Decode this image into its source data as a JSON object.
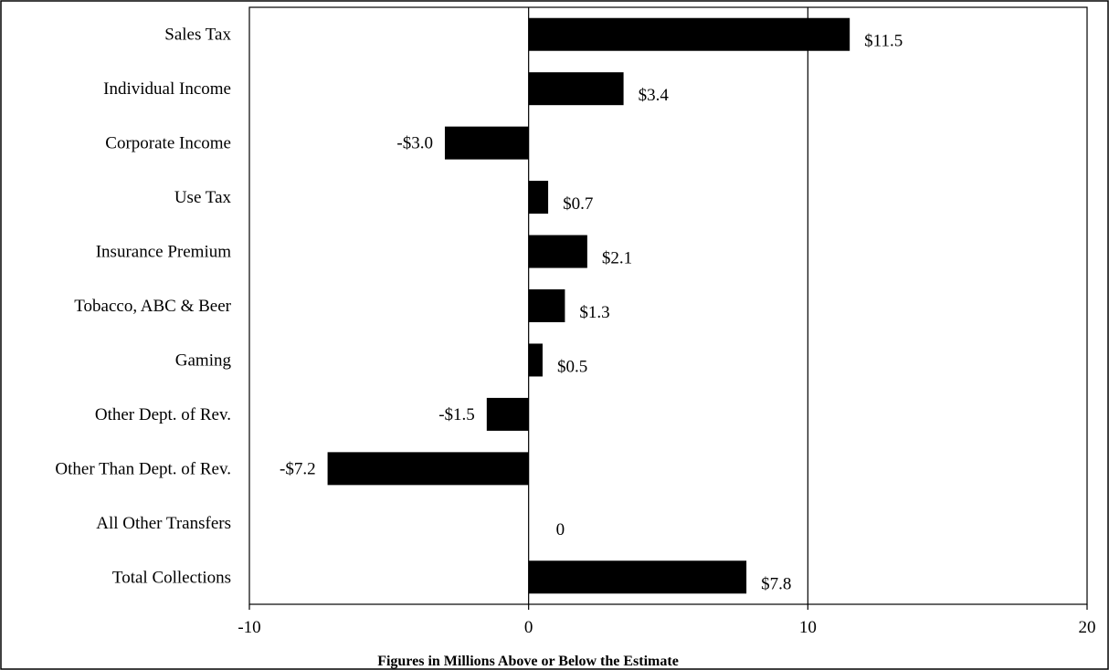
{
  "chart_data": {
    "type": "bar",
    "orientation": "horizontal",
    "categories": [
      "Sales Tax",
      "Individual Income",
      "Corporate Income",
      "Use Tax",
      "Insurance Premium",
      "Tobacco, ABC & Beer",
      "Gaming",
      "Other Dept. of Rev.",
      "Other Than Dept. of Rev.",
      "All Other Transfers",
      "Total Collections"
    ],
    "values": [
      11.5,
      3.4,
      -3.0,
      0.7,
      2.1,
      1.3,
      0.5,
      -1.5,
      -7.2,
      0,
      7.8
    ],
    "data_labels": [
      "$11.5",
      "$3.4",
      "-$3.0",
      "$0.7",
      "$2.1",
      "$1.3",
      "$0.5",
      "-$1.5",
      "-$7.2",
      "0",
      "$7.8"
    ],
    "xlabel": "Figures in Millions Above or Below the Estimate",
    "xlim": [
      -10,
      20
    ],
    "xticks": [
      -10,
      0,
      10,
      20
    ],
    "xtick_labels": [
      "-10",
      "0",
      "10",
      "20"
    ],
    "gridlines_x": [
      0,
      10
    ],
    "bar_color": "#000000",
    "legend": "none"
  }
}
